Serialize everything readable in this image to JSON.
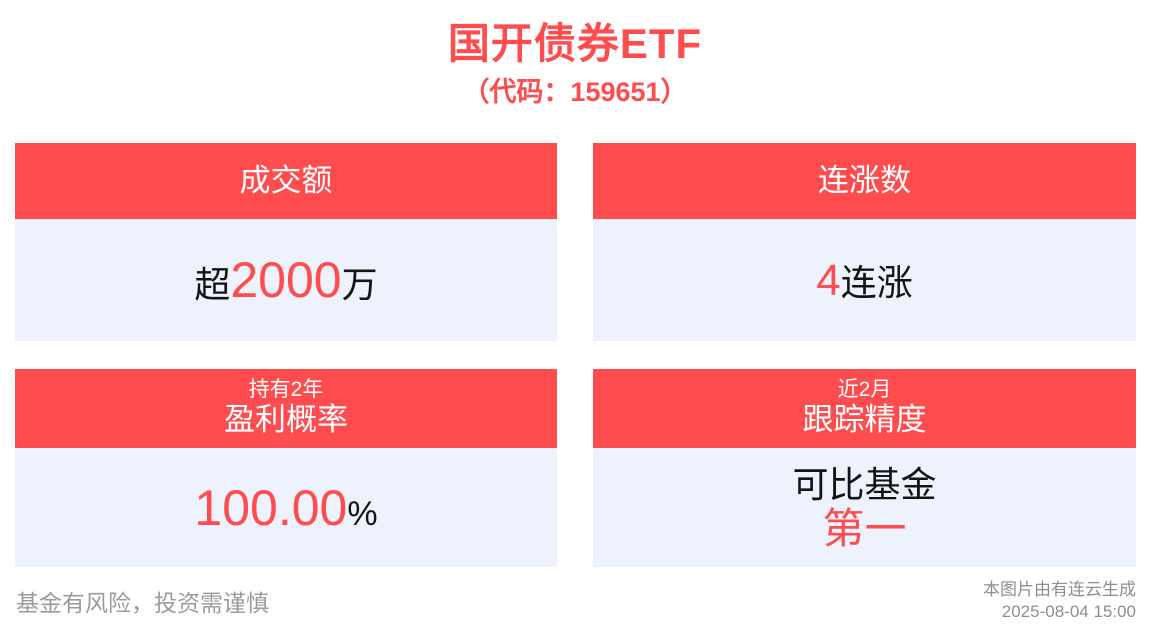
{
  "page": {
    "title": "国开债券ETF",
    "subtitle": "（代码：159651）"
  },
  "colors": {
    "accent_red": "#FF4D4F",
    "card_header_bg": "#FF4D4F",
    "card_header_text": "#FFFFFF",
    "card_body_bg": "#EDF2FC",
    "value_text": "#141414",
    "footer_gray": "#9B9B9B",
    "page_bg": "#FFFFFF"
  },
  "cards": {
    "turnover": {
      "header": "成交额",
      "value_prefix": "超",
      "value_number": "2000",
      "value_suffix": "万"
    },
    "streak": {
      "header": "连涨数",
      "value_number": "4",
      "value_suffix": "连涨"
    },
    "profit_probability": {
      "header_small": "持有2年",
      "header": "盈利概率",
      "value_number": "100.00",
      "value_suffix": "%"
    },
    "tracking": {
      "header_small": "近2月",
      "header": "跟踪精度",
      "value_line1": "可比基金",
      "value_line2": "第一"
    }
  },
  "footer": {
    "disclaimer": "基金有风险，投资需谨慎",
    "source": "本图片由有连云生成",
    "timestamp": "2025-08-04 15:00"
  }
}
